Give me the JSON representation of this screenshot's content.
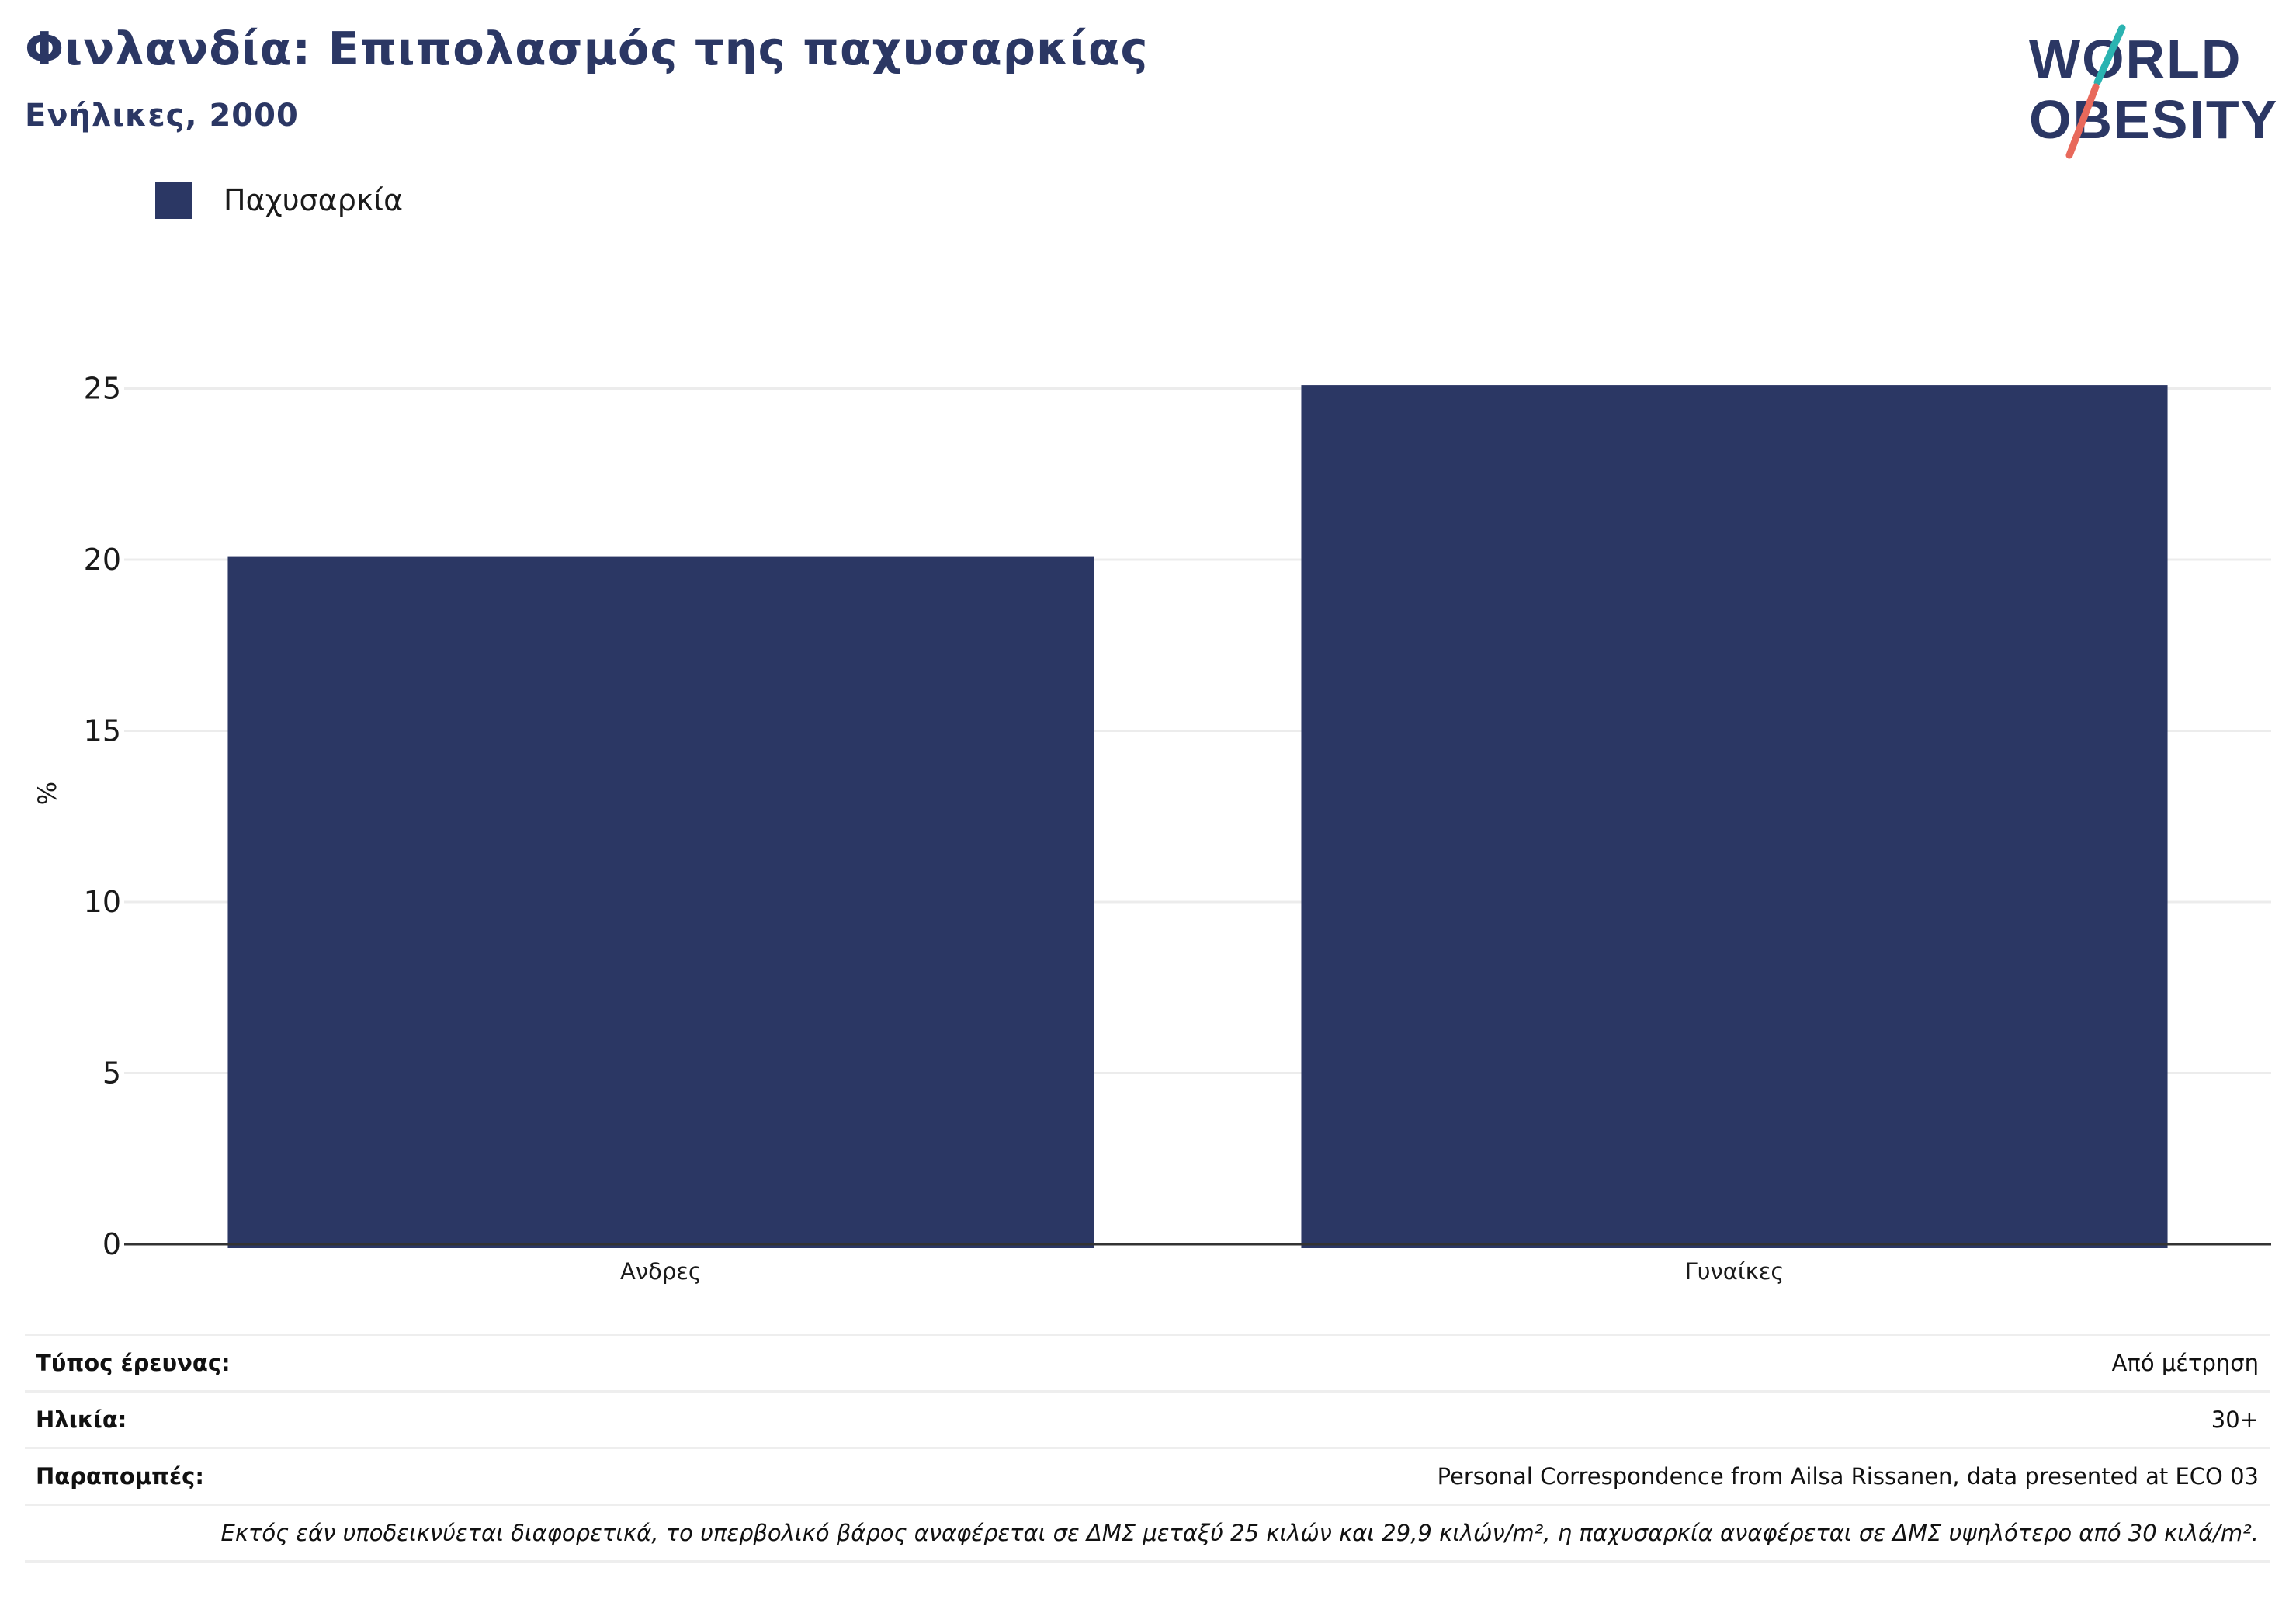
{
  "title": "Φινλανδία: Επιπολασμός της παχυσαρκίας",
  "subtitle": "Ενήλικες, 2000",
  "logo": {
    "line1": "WORLD",
    "line2": "OBESITY",
    "text_color": "#2b3764",
    "accent_teal": "#2bb3b1",
    "accent_coral": "#e8695b"
  },
  "legend": [
    {
      "label": "Παχυσαρκία",
      "color": "#2b3764"
    }
  ],
  "chart_data": {
    "type": "bar",
    "categories": [
      "Ανδρες",
      "Γυναίκες"
    ],
    "series": [
      {
        "name": "Παχυσαρκία",
        "values": [
          20.1,
          25.1
        ],
        "color": "#2b3764"
      }
    ],
    "ylabel": "%",
    "xlabel": "",
    "ylim": [
      0,
      27.5
    ],
    "yticks": [
      0,
      5,
      10,
      15,
      20,
      25
    ],
    "grid": true,
    "legend_position": "top-left"
  },
  "info": {
    "rows": [
      {
        "key": "Τύπος έρευνας:",
        "value": "Από μέτρηση"
      },
      {
        "key": "Ηλικία:",
        "value": "30+"
      },
      {
        "key": "Παραπομπές:",
        "value": "Personal Correspondence from Ailsa Rissanen, data presented at ECO 03"
      }
    ],
    "note": "Εκτός εάν υποδεικνύεται διαφορετικά, το υπερβολικό βάρος αναφέρεται σε ΔΜΣ μεταξύ 25 κιλών και 29,9 κιλών/m², η παχυσαρκία αναφέρεται σε ΔΜΣ υψηλότερο από 30 κιλά/m²."
  }
}
